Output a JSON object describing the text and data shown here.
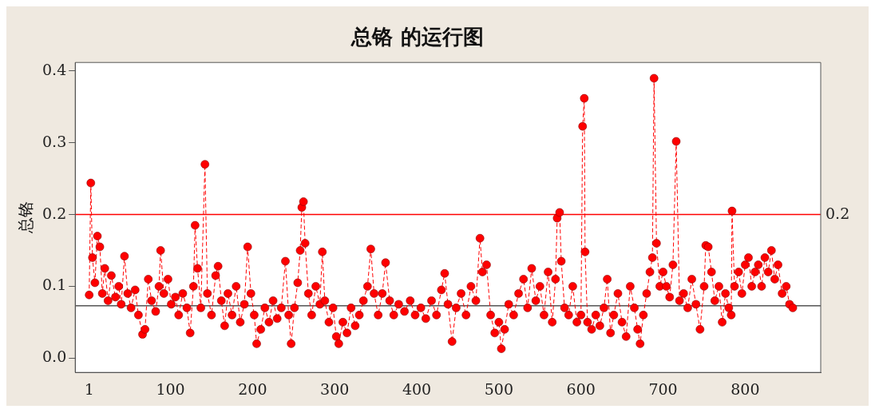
{
  "chart_data": {
    "type": "line",
    "title": "总铬 的运行图",
    "ylabel": "总铬",
    "marker": "circle",
    "line_style": "dashed",
    "legend": false,
    "grid": false,
    "xlim": [
      -16,
      892
    ],
    "xticks": [
      1,
      100,
      200,
      300,
      400,
      500,
      600,
      700,
      800
    ],
    "ylim": [
      -0.02,
      0.412
    ],
    "yticks": [
      {
        "value": 0,
        "label": "0.0"
      },
      {
        "value": 0.1,
        "label": "0.1"
      },
      {
        "value": 0.2,
        "label": "0.2"
      },
      {
        "value": 0.3,
        "label": "0.3"
      },
      {
        "value": 0.4,
        "label": "0.4"
      }
    ],
    "ref_lines": [
      {
        "axis": "y",
        "value": 0.2,
        "label": "0.2",
        "color": "#ff0000"
      },
      {
        "axis": "y",
        "value": 0.073,
        "color": "#555555"
      }
    ],
    "series": [
      {
        "color": "#ff0000",
        "x": [
          1,
          3,
          5,
          8,
          11,
          14,
          17,
          20,
          24,
          28,
          33,
          37,
          40,
          44,
          48,
          52,
          57,
          61,
          66,
          69,
          73,
          77,
          82,
          86,
          88,
          92,
          97,
          101,
          106,
          110,
          115,
          120,
          124,
          128,
          130,
          133,
          137,
          142,
          145,
          150,
          155,
          158,
          162,
          166,
          170,
          175,
          180,
          185,
          190,
          194,
          198,
          202,
          205,
          210,
          215,
          220,
          225,
          230,
          235,
          240,
          244,
          247,
          251,
          255,
          258,
          260,
          262,
          264,
          268,
          272,
          277,
          282,
          285,
          288,
          293,
          298,
          302,
          305,
          310,
          315,
          320,
          325,
          330,
          335,
          340,
          344,
          348,
          353,
          358,
          362,
          367,
          372,
          378,
          385,
          392,
          398,
          405,
          411,
          418,
          424,
          430,
          434,
          438,
          443,
          448,
          454,
          460,
          466,
          472,
          477,
          480,
          485,
          490,
          495,
          500,
          503,
          507,
          512,
          518,
          524,
          530,
          535,
          540,
          545,
          550,
          555,
          560,
          565,
          569,
          571,
          574,
          576,
          580,
          585,
          590,
          595,
          600,
          602,
          604,
          605,
          608,
          613,
          618,
          623,
          628,
          632,
          636,
          640,
          645,
          650,
          655,
          660,
          665,
          669,
          672,
          676,
          680,
          684,
          687,
          689,
          692,
          696,
          700,
          704,
          708,
          712,
          716,
          720,
          725,
          730,
          735,
          740,
          745,
          750,
          752,
          755,
          759,
          763,
          768,
          772,
          776,
          780,
          783,
          784,
          787,
          792,
          796,
          800,
          804,
          808,
          812,
          816,
          820,
          824,
          828,
          832,
          836,
          840,
          845,
          850,
          854,
          858
        ],
        "values": [
          0.088,
          0.244,
          0.14,
          0.105,
          0.17,
          0.155,
          0.09,
          0.125,
          0.08,
          0.115,
          0.085,
          0.1,
          0.075,
          0.142,
          0.09,
          0.07,
          0.095,
          0.06,
          0.033,
          0.04,
          0.11,
          0.08,
          0.065,
          0.1,
          0.15,
          0.09,
          0.11,
          0.075,
          0.085,
          0.06,
          0.09,
          0.07,
          0.035,
          0.1,
          0.185,
          0.125,
          0.07,
          0.27,
          0.09,
          0.06,
          0.115,
          0.128,
          0.08,
          0.045,
          0.09,
          0.06,
          0.1,
          0.05,
          0.075,
          0.155,
          0.09,
          0.06,
          0.02,
          0.04,
          0.07,
          0.05,
          0.08,
          0.055,
          0.07,
          0.135,
          0.06,
          0.02,
          0.07,
          0.105,
          0.15,
          0.21,
          0.218,
          0.16,
          0.09,
          0.06,
          0.1,
          0.075,
          0.148,
          0.08,
          0.05,
          0.07,
          0.03,
          0.02,
          0.05,
          0.035,
          0.07,
          0.045,
          0.06,
          0.08,
          0.1,
          0.152,
          0.09,
          0.06,
          0.09,
          0.133,
          0.08,
          0.06,
          0.075,
          0.065,
          0.08,
          0.06,
          0.07,
          0.055,
          0.08,
          0.06,
          0.095,
          0.118,
          0.075,
          0.023,
          0.07,
          0.09,
          0.06,
          0.1,
          0.08,
          0.167,
          0.12,
          0.13,
          0.06,
          0.035,
          0.05,
          0.013,
          0.04,
          0.075,
          0.06,
          0.09,
          0.11,
          0.07,
          0.125,
          0.08,
          0.1,
          0.06,
          0.12,
          0.05,
          0.11,
          0.195,
          0.203,
          0.135,
          0.07,
          0.06,
          0.1,
          0.05,
          0.06,
          0.323,
          0.362,
          0.148,
          0.05,
          0.04,
          0.06,
          0.045,
          0.07,
          0.11,
          0.035,
          0.06,
          0.09,
          0.05,
          0.03,
          0.1,
          0.07,
          0.04,
          0.02,
          0.06,
          0.09,
          0.12,
          0.14,
          0.39,
          0.16,
          0.1,
          0.12,
          0.1,
          0.085,
          0.13,
          0.302,
          0.08,
          0.09,
          0.07,
          0.11,
          0.075,
          0.04,
          0.1,
          0.157,
          0.155,
          0.12,
          0.08,
          0.1,
          0.05,
          0.09,
          0.07,
          0.06,
          0.205,
          0.1,
          0.12,
          0.09,
          0.13,
          0.14,
          0.1,
          0.12,
          0.13,
          0.1,
          0.14,
          0.12,
          0.15,
          0.11,
          0.13,
          0.09,
          0.1,
          0.075,
          0.07
        ]
      }
    ]
  }
}
